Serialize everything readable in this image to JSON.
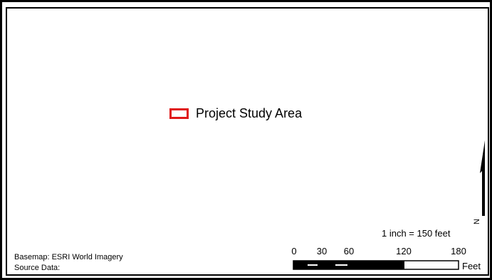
{
  "legend": {
    "items": [
      {
        "label": "Project Study Area",
        "color": "#e01818"
      }
    ]
  },
  "scale": {
    "ratio_text": "1 inch = 150 feet",
    "ticks": [
      "0",
      "30",
      "60",
      "120",
      "180"
    ],
    "tick_values": [
      0,
      30,
      60,
      120,
      180
    ],
    "unit": "Feet"
  },
  "north_arrow": {
    "letter": "N"
  },
  "credits": {
    "basemap": "Basemap: ESRI World Imagery",
    "source": "Source Data:"
  }
}
